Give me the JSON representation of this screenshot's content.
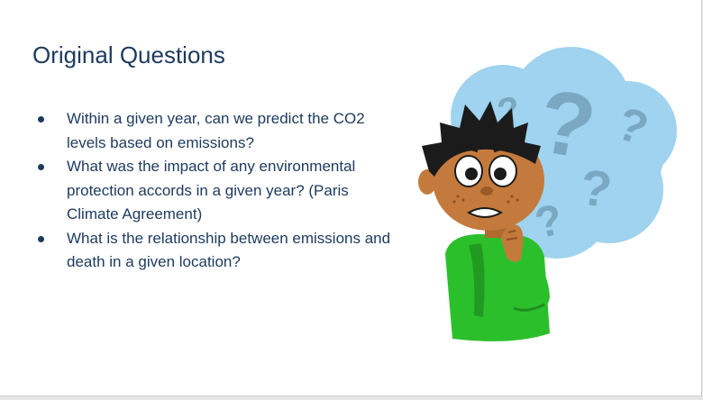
{
  "slide": {
    "title": "Original Questions",
    "bullets": [
      "Within a given year, can we predict the CO2 levels based on emissions?",
      "What was the impact of any environmental protection accords in a given year? (Paris Climate Agreement)",
      "What is the relationship between emissions and death in a given location?"
    ]
  },
  "illustration": {
    "icon": "confused-boy-with-question-marks",
    "glyph": "?",
    "colors": {
      "thought_cloud": "#9fd3ef",
      "question_marks": "#7aa7c1",
      "shirt": "#2bc02b",
      "skin": "#c47a3c",
      "hair": "#1b1b1b"
    }
  },
  "theme": {
    "text_color": "#1c3a5e",
    "background": "#ffffff"
  }
}
